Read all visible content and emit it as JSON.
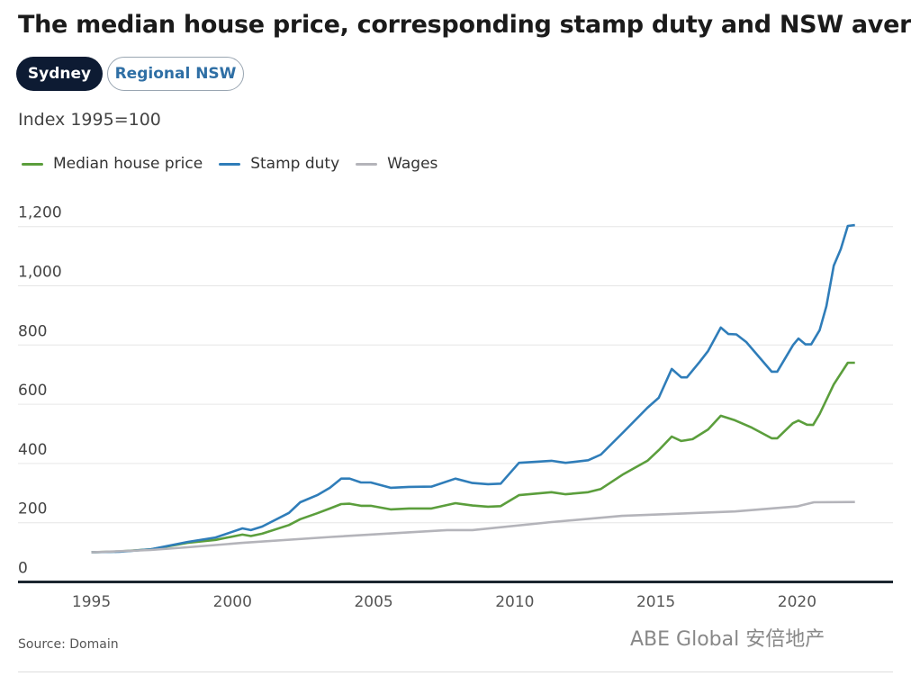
{
  "header": {
    "title": "The median house price, corresponding stamp duty and NSW average wage"
  },
  "tabs": [
    {
      "label": "Sydney",
      "active": true
    },
    {
      "label": "Regional NSW",
      "active": false
    }
  ],
  "footer": {
    "source": "Source: Domain",
    "watermark": "ABE Global 安倍地产"
  },
  "chart_data": {
    "type": "line",
    "title": "The median house price, corresponding stamp duty and NSW average wage",
    "subtitle": "Index 1995=100",
    "xlabel": "",
    "ylabel": "Index 1995=100",
    "xlim": [
      1992.4,
      2023.4
    ],
    "ylim": [
      0,
      1200
    ],
    "xticks": [
      "1995",
      "2000",
      "2005",
      "2010",
      "2015",
      "2020"
    ],
    "yticks": [
      "0",
      "200",
      "400",
      "600",
      "800",
      "1,000",
      "1,200"
    ],
    "grid": true,
    "legend_position": "top-left",
    "series": [
      {
        "name": "Median house price",
        "color": "#5b9e3c",
        "points": [
          [
            1995.0,
            100
          ],
          [
            1996.0,
            103
          ],
          [
            1997.1,
            110
          ],
          [
            1998.4,
            132
          ],
          [
            1999.4,
            142
          ],
          [
            2000.35,
            160
          ],
          [
            2000.65,
            155
          ],
          [
            2001.05,
            163
          ],
          [
            2002.0,
            192
          ],
          [
            2002.4,
            212
          ],
          [
            2003.0,
            232
          ],
          [
            2003.45,
            248
          ],
          [
            2003.85,
            263
          ],
          [
            2004.15,
            264
          ],
          [
            2004.55,
            257
          ],
          [
            2004.9,
            257
          ],
          [
            2005.6,
            245
          ],
          [
            2006.25,
            248
          ],
          [
            2007.05,
            248
          ],
          [
            2007.9,
            266
          ],
          [
            2008.5,
            258
          ],
          [
            2009.05,
            254
          ],
          [
            2009.5,
            256
          ],
          [
            2010.15,
            293
          ],
          [
            2011.3,
            303
          ],
          [
            2011.8,
            296
          ],
          [
            2012.6,
            303
          ],
          [
            2013.05,
            314
          ],
          [
            2013.85,
            364
          ],
          [
            2014.7,
            409
          ],
          [
            2015.1,
            445
          ],
          [
            2015.56,
            491
          ],
          [
            2015.9,
            476
          ],
          [
            2016.3,
            482
          ],
          [
            2016.85,
            515
          ],
          [
            2017.3,
            561
          ],
          [
            2017.8,
            546
          ],
          [
            2018.4,
            521
          ],
          [
            2019.1,
            485
          ],
          [
            2019.3,
            485
          ],
          [
            2019.85,
            536
          ],
          [
            2020.05,
            545
          ],
          [
            2020.35,
            531
          ],
          [
            2020.57,
            530
          ],
          [
            2020.8,
            567
          ],
          [
            2021.3,
            667
          ],
          [
            2021.8,
            740
          ],
          [
            2022.05,
            740
          ]
        ]
      },
      {
        "name": "Stamp duty",
        "color": "#2f7db9",
        "points": [
          [
            1995.0,
            100
          ],
          [
            1996.0,
            102
          ],
          [
            1997.1,
            110
          ],
          [
            1998.4,
            135
          ],
          [
            1999.4,
            150
          ],
          [
            2000.35,
            181
          ],
          [
            2000.65,
            175
          ],
          [
            2001.05,
            187
          ],
          [
            2002.0,
            233
          ],
          [
            2002.4,
            269
          ],
          [
            2003.0,
            293
          ],
          [
            2003.45,
            318
          ],
          [
            2003.85,
            349
          ],
          [
            2004.15,
            349
          ],
          [
            2004.55,
            336
          ],
          [
            2004.9,
            336
          ],
          [
            2005.6,
            318
          ],
          [
            2006.25,
            321
          ],
          [
            2007.05,
            322
          ],
          [
            2007.9,
            349
          ],
          [
            2008.5,
            334
          ],
          [
            2009.05,
            330
          ],
          [
            2009.5,
            332
          ],
          [
            2010.15,
            402
          ],
          [
            2011.3,
            409
          ],
          [
            2011.8,
            402
          ],
          [
            2012.6,
            411
          ],
          [
            2013.05,
            430
          ],
          [
            2013.85,
            506
          ],
          [
            2014.7,
            588
          ],
          [
            2015.1,
            622
          ],
          [
            2015.56,
            719
          ],
          [
            2015.9,
            691
          ],
          [
            2016.1,
            691
          ],
          [
            2016.55,
            743
          ],
          [
            2016.85,
            780
          ],
          [
            2017.3,
            859
          ],
          [
            2017.57,
            837
          ],
          [
            2017.85,
            836
          ],
          [
            2018.2,
            810
          ],
          [
            2019.1,
            710
          ],
          [
            2019.3,
            710
          ],
          [
            2019.86,
            800
          ],
          [
            2020.05,
            822
          ],
          [
            2020.3,
            802
          ],
          [
            2020.5,
            802
          ],
          [
            2020.8,
            850
          ],
          [
            2021.04,
            931
          ],
          [
            2021.3,
            1068
          ],
          [
            2021.55,
            1124
          ],
          [
            2021.8,
            1202
          ],
          [
            2022.05,
            1205
          ]
        ]
      },
      {
        "name": "Wages",
        "color": "#b4b4ba",
        "points": [
          [
            1995.0,
            100
          ],
          [
            1997.1,
            108
          ],
          [
            1998.4,
            117
          ],
          [
            2000.35,
            132
          ],
          [
            2003.5,
            152
          ],
          [
            2007.6,
            175
          ],
          [
            2008.5,
            175
          ],
          [
            2011.3,
            202
          ],
          [
            2013.8,
            223
          ],
          [
            2017.8,
            238
          ],
          [
            2020.0,
            255
          ],
          [
            2020.6,
            269
          ],
          [
            2022.05,
            270
          ]
        ]
      }
    ]
  }
}
